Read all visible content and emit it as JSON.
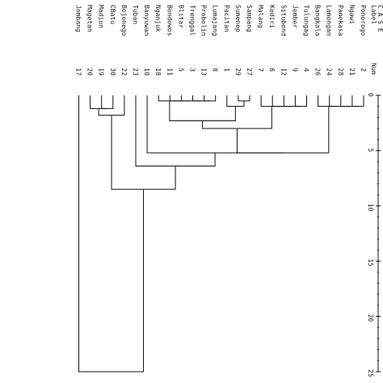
{
  "header": {
    "label_heading": "Label",
    "num_heading": "Num",
    "case_heading": "C A S E"
  },
  "scale": {
    "ticks": [
      "0",
      "5",
      "10",
      "15",
      "20",
      "25"
    ]
  },
  "cases": [
    {
      "label": "Ponorogo",
      "num": "2"
    },
    {
      "label": "Ngawi",
      "num": "21"
    },
    {
      "label": "Pamekasa",
      "num": "28"
    },
    {
      "label": "Lamongan",
      "num": "24"
    },
    {
      "label": "Bangkala",
      "num": "26"
    },
    {
      "label": "Tulungag",
      "num": "4"
    },
    {
      "label": "Jember",
      "num": "9"
    },
    {
      "label": "Situbond",
      "num": "12"
    },
    {
      "label": "Kediri",
      "num": "6"
    },
    {
      "label": "Malang",
      "num": "7"
    },
    {
      "label": "Sampang",
      "num": "27"
    },
    {
      "label": "Sumenep",
      "num": "29"
    },
    {
      "label": "Pacitan",
      "num": "1"
    },
    {
      "label": "Lumajang",
      "num": "8"
    },
    {
      "label": "Probolin",
      "num": "13"
    },
    {
      "label": "Trenggal",
      "num": "3"
    },
    {
      "label": "Blitar",
      "num": "5"
    },
    {
      "label": "Bondowos",
      "num": "11"
    },
    {
      "label": "Nganjuk",
      "num": "18"
    },
    {
      "label": "Banyuwan",
      "num": "10"
    },
    {
      "label": "Tuban",
      "num": "23"
    },
    {
      "label": "Bojonego",
      "num": "22"
    },
    {
      "label": "CBatu",
      "num": "30"
    },
    {
      "label": "Madiun",
      "num": "19"
    },
    {
      "label": "Magetan",
      "num": "20"
    },
    {
      "label": "Jombang",
      "num": "17"
    }
  ],
  "merges": [
    {
      "a": 0,
      "b": 1,
      "h": 1
    },
    {
      "a": 26,
      "b": 2,
      "h": 1
    },
    {
      "a": 27,
      "b": 3,
      "h": 1
    },
    {
      "a": 28,
      "b": 4,
      "h": 1
    },
    {
      "a": 5,
      "b": 6,
      "h": 1
    },
    {
      "a": 30,
      "b": 7,
      "h": 1
    },
    {
      "a": 31,
      "b": 8,
      "h": 1
    },
    {
      "a": 32,
      "b": 9,
      "h": 1
    },
    {
      "a": 10,
      "b": 11,
      "h": 0.5
    },
    {
      "a": 34,
      "b": 12,
      "h": 1
    },
    {
      "a": 13,
      "b": 14,
      "h": 0.5
    },
    {
      "a": 36,
      "b": 15,
      "h": 0.5
    },
    {
      "a": 37,
      "b": 16,
      "h": 0.5
    },
    {
      "a": 38,
      "b": 17,
      "h": 0.5
    },
    {
      "a": 39,
      "b": 18,
      "h": 0.5
    },
    {
      "a": 35,
      "b": 40,
      "h": 2.3
    },
    {
      "a": 33,
      "b": 41,
      "h": 3
    },
    {
      "a": 29,
      "b": 42,
      "h": 5.2
    },
    {
      "a": 43,
      "b": 19,
      "h": 5.2
    },
    {
      "a": 44,
      "b": 20,
      "h": 6.4
    },
    {
      "a": 22,
      "b": 23,
      "h": 1.2
    },
    {
      "a": 46,
      "b": 24,
      "h": 1.2
    },
    {
      "a": 21,
      "b": 47,
      "h": 1.8
    },
    {
      "a": 45,
      "b": 48,
      "h": 8.5
    },
    {
      "a": 49,
      "b": 25,
      "h": 25
    }
  ]
}
